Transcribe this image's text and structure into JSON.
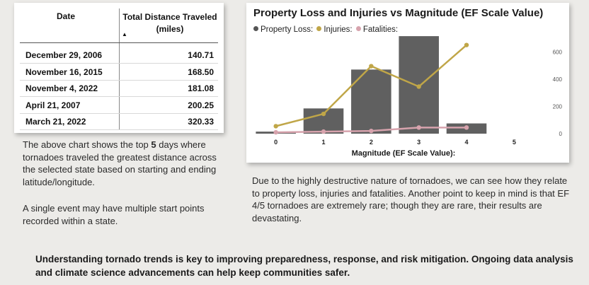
{
  "table": {
    "col_date": "Date",
    "col_distance": "Total Distance Traveled (miles)",
    "sort_indicator": "▲",
    "rows": [
      {
        "date": "December 29, 2006",
        "distance": "140.71"
      },
      {
        "date": "November 16, 2015",
        "distance": "168.50"
      },
      {
        "date": "November 4, 2022",
        "distance": "181.08"
      },
      {
        "date": "April 21, 2007",
        "distance": "200.25"
      },
      {
        "date": "March 21, 2022",
        "distance": "320.33"
      }
    ]
  },
  "chart": {
    "title": "Property Loss and Injuries vs Magnitude (EF Scale Value)",
    "legend": [
      {
        "label": "Property Loss:",
        "color": "#555555"
      },
      {
        "label": "Injuries:",
        "color": "#c0a648"
      },
      {
        "label": "Fatalities:",
        "color": "#d7a3ad"
      }
    ],
    "xlabel": "Magnitude (EF Scale Value):"
  },
  "chart_data": {
    "type": "bar",
    "title": "Property Loss and Injuries vs Magnitude (EF Scale Value)",
    "xlabel": "Magnitude (EF Scale Value):",
    "ylabel": "",
    "categories": [
      "0",
      "1",
      "2",
      "3",
      "4",
      "5"
    ],
    "ylim": [
      0,
      700
    ],
    "y_ticks": [
      0,
      200,
      400,
      600
    ],
    "y_tick_labels": [
      "0",
      "200",
      "400",
      "600"
    ],
    "series": [
      {
        "name": "Property Loss:",
        "kind": "bar",
        "color": "#606060",
        "values": [
          15,
          185,
          470,
          715,
          75,
          null
        ]
      },
      {
        "name": "Injuries:",
        "kind": "line",
        "color": "#c0a648",
        "values": [
          55,
          145,
          495,
          345,
          650,
          null
        ]
      },
      {
        "name": "Fatalities:",
        "kind": "line",
        "color": "#d7a3ad",
        "values": [
          10,
          15,
          20,
          45,
          45,
          null
        ]
      }
    ],
    "grid": false,
    "legend_position": "top-left"
  },
  "text": {
    "p1_before": "The above chart shows the top ",
    "p1_bold": "5",
    "p1_after": " days where tornadoes traveled the greatest distance across the selected state based on starting and ending latitude/longitude.",
    "p2": "A single event may have multiple start points recorded within a state.",
    "p3": "Due to the highly destructive nature of tornadoes, we can see how they relate to property loss, injuries and fatalities.  Another point to keep in mind is that EF 4/5 tornadoes are extremely rare; though they are rare, their results are devastating.",
    "footer": "Understanding tornado trends is key to improving preparedness, response, and risk mitigation. Ongoing data analysis and climate science advancements can help keep communities safer."
  }
}
